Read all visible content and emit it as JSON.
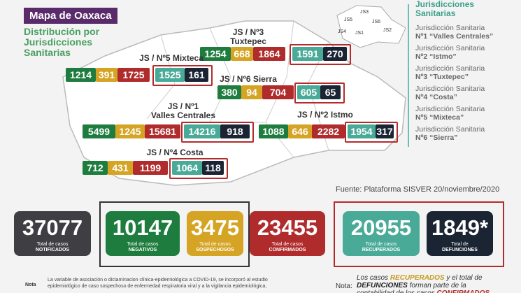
{
  "header": {
    "title": "Mapa de Oaxaca",
    "subtitle": "Distribución por Jurisdicciones Sanitarias"
  },
  "legend": {
    "title": "Jurisdicciones Sanitarias",
    "map_labels": [
      "JS5",
      "JS3",
      "JS6",
      "JS1",
      "JS2",
      "JS4"
    ],
    "items": [
      {
        "line1": "Jurisdicción Sanitaria",
        "line2": "Nº1 “Valles Centrales”"
      },
      {
        "line1": "Jurisdicción Sanitaria",
        "line2": "Nº2 “Istmo”"
      },
      {
        "line1": "Jurisdicción Sanitaria",
        "line2": "Nº3 “Tuxtepec”"
      },
      {
        "line1": "Jurisdicción Sanitaria",
        "line2": "Nº4 “Costa”"
      },
      {
        "line1": "Jurisdicción Sanitaria",
        "line2": "Nº5 “Mixteca”"
      },
      {
        "line1": "Jurisdicción Sanitaria",
        "line2": "Nº6 “Sierra”"
      }
    ]
  },
  "jurisdictions": [
    {
      "label": "JS / Nº3",
      "sublabel": "Tuxtepec",
      "values": [
        1254,
        668,
        1864,
        1591,
        270
      ]
    },
    {
      "label": "JS / Nº5 Mixteca",
      "values": [
        1214,
        391,
        1725,
        1525,
        161
      ]
    },
    {
      "label": "JS / Nº6 Sierra",
      "values": [
        380,
        94,
        704,
        605,
        65
      ]
    },
    {
      "label": "JS / Nº1",
      "sublabel": "Valles Centrales",
      "values": [
        5499,
        1245,
        15681,
        14216,
        918
      ]
    },
    {
      "label": "JS / Nº2 Istmo",
      "values": [
        1088,
        646,
        2282,
        1954,
        317
      ]
    },
    {
      "label": "JS / Nº4 Costa",
      "values": [
        712,
        431,
        1199,
        1064,
        118
      ]
    }
  ],
  "source": "Fuente: Plataforma SISVER 20/noviembre/2020",
  "totals": [
    {
      "value": "37077",
      "label": "Total de casos",
      "sublabel": "NOTIFICADOS"
    },
    {
      "value": "10147",
      "label": "Total de casos",
      "sublabel": "NEGATIVOS"
    },
    {
      "value": "3475",
      "label": "Total de casos",
      "sublabel": "SOSPECHOSOS"
    },
    {
      "value": "23455",
      "label": "Total de casos",
      "sublabel": "CONFIRMADOS"
    },
    {
      "value": "20955",
      "label": "Total de casos",
      "sublabel": "RECUPERADOS"
    },
    {
      "value": "1849*",
      "label": "Total de",
      "sublabel": "DEFUNCIONES"
    }
  ],
  "notes": {
    "left_label": "Nota",
    "left_text": "La variable de asociación o dictaminacion clínica-epidemiológica a COVID-19, se incorporó al estudio epidemiológico de caso sospechoso de enfermedad respiratoria viral y a la vigilancia epidemiológica,",
    "right_label": "Nota:",
    "right_parts": [
      "Los casos ",
      "RECUPERADOS",
      " y el total de ",
      "DEFUNCIONES",
      " forman parte de la contabilidad de los casos ",
      "CONFIRMADOS"
    ]
  }
}
